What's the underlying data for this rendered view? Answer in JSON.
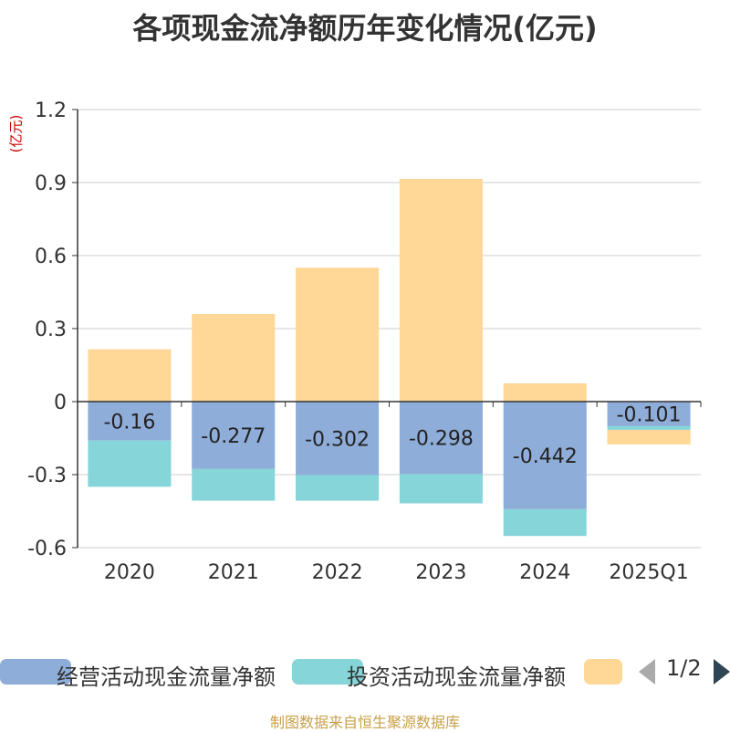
{
  "title": "各项现金流净额历年变化情况(亿元)",
  "unit_label": "(亿元)",
  "source": "制图数据来自恒生聚源数据库",
  "legend": {
    "items": [
      {
        "label": "经营活动现金流量净额",
        "color": "#8fadd9"
      },
      {
        "label": "投资活动现金流量净额",
        "color": "#86d5d8"
      },
      {
        "label": "",
        "color": "#ffd797"
      }
    ],
    "page": "1/2"
  },
  "chart_data": {
    "type": "bar",
    "stacked": true,
    "categories": [
      "2020",
      "2021",
      "2022",
      "2023",
      "2024",
      "2025Q1"
    ],
    "series": [
      {
        "name": "经营活动现金流量净额",
        "color": "#8fadd9",
        "values": [
          -0.16,
          -0.277,
          -0.302,
          -0.298,
          -0.442,
          -0.101
        ],
        "labels": [
          "-0.16",
          "-0.277",
          "-0.302",
          "-0.298",
          "-0.442",
          "-0.101"
        ]
      },
      {
        "name": "投资活动现金流量净额",
        "color": "#86d5d8",
        "values": [
          -0.19,
          -0.13,
          -0.105,
          -0.12,
          -0.11,
          -0.015
        ]
      },
      {
        "color": "#ffd797",
        "values": [
          0.215,
          0.36,
          0.55,
          0.915,
          0.075,
          -0.06
        ]
      }
    ],
    "yticks": [
      "1.2",
      "0.9",
      "0.6",
      "0.3",
      "0",
      "-0.3",
      "-0.6"
    ],
    "ylim": [
      -0.6,
      1.2
    ],
    "grid": true,
    "legend_position": "bottom"
  }
}
